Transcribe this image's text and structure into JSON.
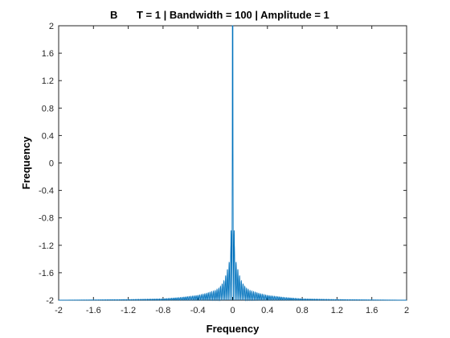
{
  "chart_data": {
    "type": "line",
    "panel_label": "B",
    "title": "T = 1 | Bandwidth = 100 | Amplitude = 1",
    "xlabel": "Frequency",
    "ylabel": "Frequency",
    "xlim": [
      -2,
      2
    ],
    "ylim": [
      -2,
      2
    ],
    "xticks": [
      -2,
      -1.6,
      -1.2,
      -0.8,
      -0.4,
      0,
      0.4,
      0.8,
      1.2,
      1.6,
      2
    ],
    "xtick_labels": [
      "-2",
      "-1.6",
      "-1.2",
      "-0.8",
      "-0.4",
      "0",
      "0.4",
      "0.8",
      "1.2",
      "1.6",
      "2"
    ],
    "yticks": [
      -2,
      -1.6,
      -1.2,
      -0.8,
      -0.4,
      0,
      0.4,
      0.8,
      1.2,
      1.6,
      2
    ],
    "ytick_labels": [
      "-2",
      "-1.6",
      "-1.2",
      "-0.8",
      "-0.4",
      "0",
      "0.4",
      "0.8",
      "1.2",
      "1.6",
      "2"
    ],
    "grid": false,
    "series": [
      {
        "color": "#0072BD",
        "description_points": {
          "peak_x": 0,
          "peak_y": 2,
          "baseline_y": -2,
          "x": [
            -2,
            -1.2,
            -0.8,
            -0.6,
            -0.4,
            -0.3,
            -0.2,
            -0.15,
            -0.1,
            -0.07,
            -0.04,
            -0.02,
            0,
            0.02,
            0.04,
            0.07,
            0.1,
            0.15,
            0.2,
            0.3,
            0.4,
            0.6,
            0.8,
            1.2,
            2
          ],
          "y": [
            -2,
            -1.99,
            -1.98,
            -1.96,
            -1.93,
            -1.9,
            -1.86,
            -1.82,
            -1.72,
            -1.6,
            -1.45,
            -1.2,
            2,
            -1.2,
            -1.45,
            -1.6,
            -1.72,
            -1.82,
            -1.86,
            -1.9,
            -1.93,
            -1.96,
            -1.98,
            -1.99,
            -2
          ]
        }
      }
    ]
  }
}
